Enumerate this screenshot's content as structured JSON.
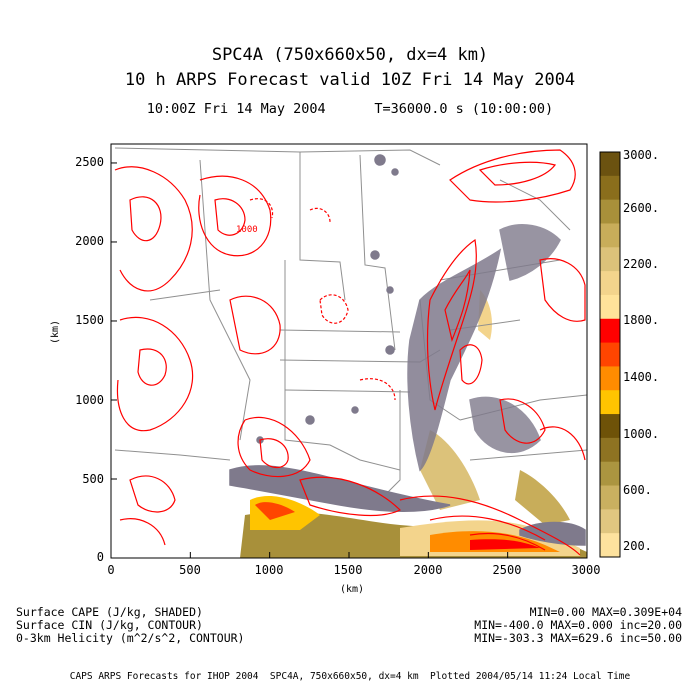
{
  "header": {
    "title_line1": "SPC4A (750x660x50, dx=4 km)",
    "title_line2": "10 h ARPS Forecast valid 10Z Fri 14 May 2004",
    "title_line3": "10:00Z Fri 14 May 2004      T=36000.0 s (10:00:00)"
  },
  "axes": {
    "xlabel": "(km)",
    "ylabel": "(km)",
    "x_ticks": [
      "0",
      "500",
      "1000",
      "1500",
      "2000",
      "2500",
      "3000"
    ],
    "y_ticks": [
      "0",
      "500",
      "1000",
      "1500",
      "2000",
      "2500"
    ]
  },
  "colorbar": {
    "tick_labels": [
      "3000.",
      "2600.",
      "2200.",
      "1800.",
      "1400.",
      "1000.",
      "600.",
      "200."
    ],
    "colors": [
      "#6b5210",
      "#8a6e1c",
      "#a8903a",
      "#c8ad5a",
      "#dcc27a",
      "#f3d48c",
      "#ffe39a",
      "#ff0000",
      "#ff4500",
      "#ff8c00",
      "#ffc400",
      "#6e5208",
      "#8e7322",
      "#ab9540",
      "#c9b060",
      "#e0c680",
      "#fde29e"
    ]
  },
  "legend": {
    "line1_left": "Surface CAPE (J/kg, SHADED)",
    "line2_left": "Surface CIN (J/kg, CONTOUR)",
    "line3_left": "0-3km Helicity (m^2/s^2, CONTOUR)",
    "line1_right": "MIN=0.00 MAX=0.309E+04",
    "line2_right": "MIN=-400.0 MAX=0.000 inc=20.00",
    "line3_right": "MIN=-303.3 MAX=629.6 inc=50.00"
  },
  "credit": "CAPS ARPS Forecasts for IHOP 2004  SPC4A, 750x660x50, dx=4 km  Plotted 2004/05/14 11:24 Local Time",
  "map_labels": [
    "1000"
  ],
  "style": {
    "contour_red": "#ff0000",
    "cin_gray": "#7f7a8c",
    "boundary_gray": "#909090"
  }
}
